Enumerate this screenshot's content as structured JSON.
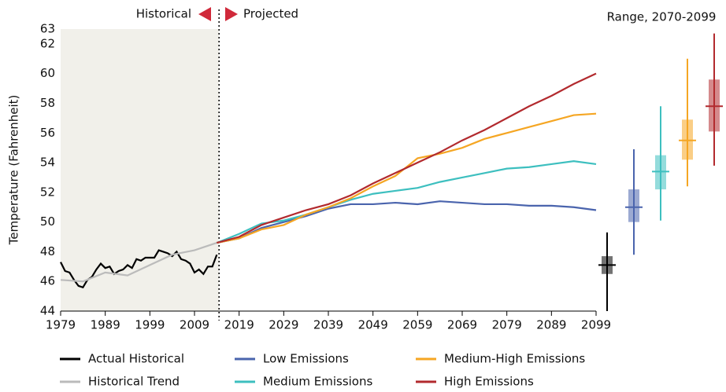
{
  "chart_data": {
    "type": "line",
    "ylabel": "Temperature (Fahrenheit)",
    "left_label": "Historical",
    "right_label": "Projected",
    "range_title": "Range, 2070-2099",
    "divider": 2014.5,
    "xlim": [
      1979,
      2099
    ],
    "xticks": [
      1979,
      1989,
      1999,
      2009,
      2019,
      2029,
      2039,
      2049,
      2059,
      2069,
      2079,
      2089,
      2099
    ],
    "ylim": [
      44,
      63
    ],
    "yticks": [
      44,
      46,
      48,
      50,
      52,
      54,
      56,
      58,
      60,
      62,
      63
    ],
    "series": [
      {
        "name": "Actual Historical",
        "color": "#000000",
        "x": [
          1979,
          1980,
          1981,
          1982,
          1983,
          1984,
          1985,
          1986,
          1987,
          1988,
          1989,
          1990,
          1991,
          1992,
          1993,
          1994,
          1995,
          1996,
          1997,
          1998,
          1999,
          2000,
          2001,
          2002,
          2003,
          2004,
          2005,
          2006,
          2007,
          2008,
          2009,
          2010,
          2011,
          2012,
          2013,
          2014
        ],
        "values": [
          47.3,
          46.7,
          46.6,
          46.1,
          45.7,
          45.6,
          46.1,
          46.3,
          46.8,
          47.2,
          46.9,
          47.0,
          46.5,
          46.7,
          46.8,
          47.1,
          46.9,
          47.5,
          47.4,
          47.6,
          47.6,
          47.6,
          48.1,
          48.0,
          47.9,
          47.7,
          48.0,
          47.5,
          47.4,
          47.2,
          46.6,
          46.8,
          46.5,
          47.0,
          47.0,
          47.8
        ]
      },
      {
        "name": "Historical Trend",
        "color": "#bbbbbb",
        "x": [
          1979,
          1984,
          1989,
          1994,
          1999,
          2004,
          2009,
          2014
        ],
        "values": [
          46.1,
          46.0,
          46.6,
          46.4,
          47.1,
          47.8,
          48.1,
          48.6
        ]
      },
      {
        "name": "Low Emissions",
        "color": "#4a64ad",
        "x": [
          2014,
          2019,
          2024,
          2029,
          2034,
          2039,
          2044,
          2049,
          2054,
          2059,
          2064,
          2069,
          2074,
          2079,
          2084,
          2089,
          2094,
          2099
        ],
        "values": [
          48.6,
          48.9,
          49.6,
          50.0,
          50.4,
          50.9,
          51.2,
          51.2,
          51.3,
          51.2,
          51.4,
          51.3,
          51.2,
          51.2,
          51.1,
          51.1,
          51.0,
          50.8
        ]
      },
      {
        "name": "Medium Emissions",
        "color": "#3dbfbf",
        "x": [
          2014,
          2019,
          2024,
          2029,
          2034,
          2039,
          2044,
          2049,
          2054,
          2059,
          2064,
          2069,
          2074,
          2079,
          2084,
          2089,
          2094,
          2099
        ],
        "values": [
          48.6,
          49.2,
          49.9,
          50.1,
          50.5,
          51.0,
          51.5,
          51.9,
          52.1,
          52.3,
          52.7,
          53.0,
          53.3,
          53.6,
          53.7,
          53.9,
          54.1,
          53.9
        ]
      },
      {
        "name": "Medium-High Emissions",
        "color": "#f5a623",
        "x": [
          2014,
          2019,
          2024,
          2029,
          2034,
          2039,
          2044,
          2049,
          2054,
          2059,
          2064,
          2069,
          2074,
          2079,
          2084,
          2089,
          2094,
          2099
        ],
        "values": [
          48.6,
          48.9,
          49.5,
          49.8,
          50.5,
          51.0,
          51.6,
          52.4,
          53.1,
          54.3,
          54.6,
          55.0,
          55.6,
          56.0,
          56.4,
          56.8,
          57.2,
          57.3
        ]
      },
      {
        "name": "High Emissions",
        "color": "#b22a2e",
        "x": [
          2014,
          2019,
          2024,
          2029,
          2034,
          2039,
          2044,
          2049,
          2054,
          2059,
          2064,
          2069,
          2074,
          2079,
          2084,
          2089,
          2094,
          2099
        ],
        "values": [
          48.6,
          49.0,
          49.8,
          50.3,
          50.8,
          51.2,
          51.8,
          52.6,
          53.3,
          54.0,
          54.7,
          55.5,
          56.2,
          57.0,
          57.8,
          58.5,
          59.3,
          60.0
        ]
      }
    ],
    "ranges": [
      {
        "color": "#000000",
        "min": 44.0,
        "q1": 46.5,
        "median": 47.1,
        "q3": 47.7,
        "max": 49.3
      },
      {
        "color": "#4a64ad",
        "min": 47.8,
        "q1": 50.0,
        "median": 51.0,
        "q3": 52.2,
        "max": 54.9
      },
      {
        "color": "#3dbfbf",
        "min": 50.1,
        "q1": 52.2,
        "median": 53.4,
        "q3": 54.5,
        "max": 57.8
      },
      {
        "color": "#f5a623",
        "min": 52.4,
        "q1": 54.2,
        "median": 55.5,
        "q3": 56.9,
        "max": 61.0
      },
      {
        "color": "#b22a2e",
        "min": 53.8,
        "q1": 56.1,
        "median": 57.8,
        "q3": 59.6,
        "max": 62.7
      }
    ]
  }
}
